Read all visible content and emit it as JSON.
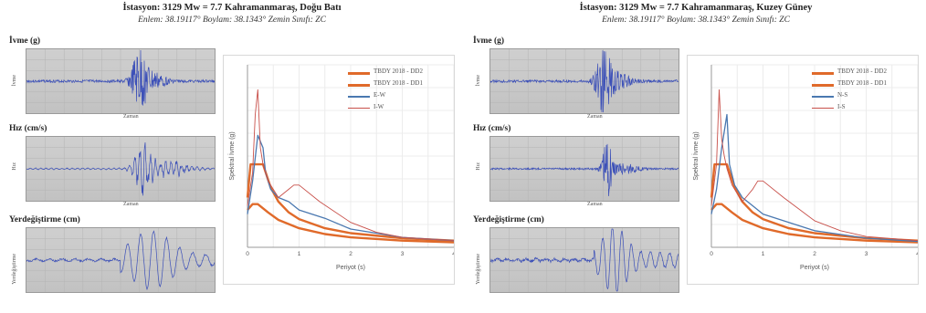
{
  "groups": [
    {
      "title": "İstasyon: 3129 Mw = 7.7 Kahramanmaraş, Doğu Batı",
      "subtitle": "Enlem: 38.19117° Boylam: 38.1343° Zemin Sınıfı: ZC",
      "panels": [
        {
          "title": "İvme (g)",
          "ylabel": "İvme",
          "xlabel": "Zaman"
        },
        {
          "title": "Hız (cm/s)",
          "ylabel": "Hız",
          "xlabel": "Zaman"
        },
        {
          "title": "Yerdeğiştirme (cm)",
          "ylabel": "Yerdeğiştirme",
          "xlabel": ""
        }
      ]
    },
    {
      "title": "İstasyon: 3129 Mw = 7.7 Kahramanmaraş, Kuzey Güney",
      "subtitle": "Enlem: 38.19117° Boylam: 38.1343° Zemin Sınıfı: ZC",
      "panels": [
        {
          "title": "İvme (g)",
          "ylabel": "İvme",
          "xlabel": "Zaman"
        },
        {
          "title": "Hız (cm/s)",
          "ylabel": "Hız",
          "xlabel": "Zaman"
        },
        {
          "title": "Yerdeğiştirme (cm)",
          "ylabel": "Yerdeğiştirme",
          "xlabel": ""
        }
      ]
    }
  ],
  "chart_data": [
    {
      "type": "line",
      "ylabel": "Spektral İvme (g)",
      "xlabel": "Periyot (s)",
      "xlim": [
        0,
        4
      ],
      "ylim": [
        0,
        2.2
      ],
      "xticks": [
        "0",
        "1",
        "2",
        "3",
        "4"
      ],
      "series": [
        {
          "name": "TBDY 2018 - DD2",
          "color": "#e06a2a",
          "x": [
            0,
            0.1,
            0.2,
            0.4,
            0.6,
            1.0,
            1.5,
            2.0,
            3.0,
            4.0
          ],
          "y": [
            0.45,
            0.52,
            0.52,
            0.42,
            0.33,
            0.23,
            0.16,
            0.12,
            0.08,
            0.06
          ]
        },
        {
          "name": "TBDY 2018 - DD1",
          "color": "#e06a2a",
          "x": [
            0,
            0.06,
            0.3,
            0.45,
            0.6,
            0.8,
            1.0,
            1.5,
            2.0,
            3.0,
            4.0
          ],
          "y": [
            0.6,
            1.0,
            1.0,
            0.72,
            0.55,
            0.42,
            0.34,
            0.23,
            0.17,
            0.11,
            0.08
          ]
        },
        {
          "name": "E-W",
          "color": "#4a78b0",
          "x": [
            0,
            0.1,
            0.2,
            0.3,
            0.35,
            0.45,
            0.6,
            0.8,
            1.0,
            1.5,
            2.0,
            3.0,
            4.0
          ],
          "y": [
            0.4,
            0.8,
            1.35,
            1.2,
            0.9,
            0.7,
            0.6,
            0.55,
            0.45,
            0.35,
            0.22,
            0.12,
            0.08
          ]
        },
        {
          "name": "I-W",
          "color": "#c8504a",
          "x": [
            0,
            0.1,
            0.15,
            0.2,
            0.25,
            0.3,
            0.4,
            0.6,
            0.8,
            0.9,
            1.0,
            1.4,
            2.0,
            2.5,
            3.0,
            4.0
          ],
          "y": [
            0.5,
            0.9,
            1.6,
            1.9,
            1.2,
            1.0,
            0.8,
            0.6,
            0.7,
            0.75,
            0.75,
            0.55,
            0.3,
            0.18,
            0.12,
            0.08
          ]
        }
      ]
    },
    {
      "type": "line",
      "ylabel": "Spektral İvme (g)",
      "xlabel": "Periyot (s)",
      "xlim": [
        0,
        4
      ],
      "ylim": [
        0,
        2.2
      ],
      "xticks": [
        "0",
        "1",
        "2",
        "3",
        "4"
      ],
      "series": [
        {
          "name": "TBDY 2018 - DD2",
          "color": "#e06a2a",
          "x": [
            0,
            0.1,
            0.2,
            0.4,
            0.6,
            1.0,
            1.5,
            2.0,
            3.0,
            4.0
          ],
          "y": [
            0.45,
            0.52,
            0.52,
            0.42,
            0.33,
            0.23,
            0.16,
            0.12,
            0.08,
            0.06
          ]
        },
        {
          "name": "TBDY 2018 - DD1",
          "color": "#e06a2a",
          "x": [
            0,
            0.06,
            0.3,
            0.45,
            0.6,
            0.8,
            1.0,
            1.5,
            2.0,
            3.0,
            4.0
          ],
          "y": [
            0.6,
            1.0,
            1.0,
            0.72,
            0.55,
            0.42,
            0.34,
            0.23,
            0.17,
            0.11,
            0.08
          ]
        },
        {
          "name": "N-S",
          "color": "#4a78b0",
          "x": [
            0,
            0.1,
            0.2,
            0.3,
            0.35,
            0.45,
            0.6,
            0.8,
            1.0,
            1.5,
            2.0,
            3.0,
            4.0
          ],
          "y": [
            0.4,
            0.7,
            1.2,
            1.6,
            1.0,
            0.75,
            0.6,
            0.5,
            0.4,
            0.3,
            0.2,
            0.11,
            0.07
          ]
        },
        {
          "name": "I-S",
          "color": "#c8504a",
          "x": [
            0,
            0.1,
            0.15,
            0.2,
            0.25,
            0.3,
            0.4,
            0.6,
            0.8,
            0.9,
            1.0,
            1.4,
            2.0,
            2.5,
            3.0,
            4.0
          ],
          "y": [
            0.5,
            1.0,
            1.9,
            1.3,
            1.1,
            0.95,
            0.75,
            0.55,
            0.7,
            0.8,
            0.8,
            0.6,
            0.32,
            0.2,
            0.13,
            0.08
          ]
        }
      ]
    }
  ]
}
